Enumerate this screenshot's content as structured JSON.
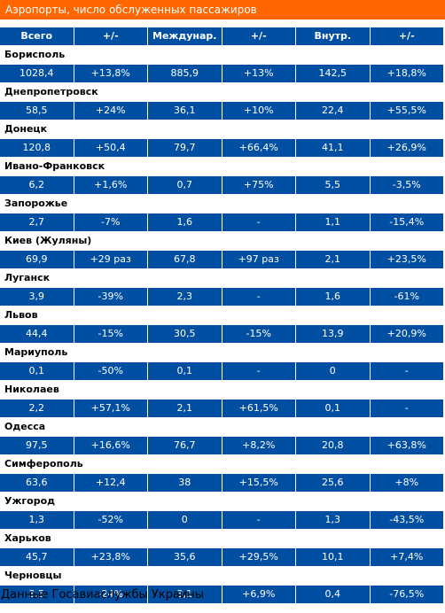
{
  "title": "Аэропорты, число обслуженных пассажиров",
  "headers": [
    "Всего",
    "+/-",
    "Междунар.",
    "+/-",
    "Внутр.",
    "+/-"
  ],
  "rows": [
    {
      "city": "Борисполь",
      "values": [
        "1028,4",
        "+13,8%",
        "885,9",
        "+13%",
        "142,5",
        "+18,8%"
      ]
    },
    {
      "city": "Днепропетровск",
      "values": [
        "58,5",
        "+24%",
        "36,1",
        "+10%",
        "22,4",
        "+55,5%"
      ]
    },
    {
      "city": "Донецк",
      "values": [
        "120,8",
        "+50,4",
        "79,7",
        "+66,4%",
        "41,1",
        "+26,9%"
      ]
    },
    {
      "city": "Ивано-Франковск",
      "values": [
        "6,2",
        "+1,6%",
        "0,7",
        "+75%",
        "5,5",
        "-3,5%"
      ]
    },
    {
      "city": "Запорожье",
      "values": [
        "2,7",
        "-7%",
        "1,6",
        "-",
        "1,1",
        "-15,4%"
      ]
    },
    {
      "city": "Киев (Жуляны)",
      "values": [
        "69,9",
        "+29 раз",
        "67,8",
        "+97 раз",
        "2,1",
        "+23,5%"
      ]
    },
    {
      "city": "Луганск",
      "values": [
        "3,9",
        "-39%",
        "2,3",
        "-",
        "1,6",
        "-61%"
      ]
    },
    {
      "city": "Львов",
      "values": [
        "44,4",
        "-15%",
        "30,5",
        "-15%",
        "13,9",
        "+20,9%"
      ]
    },
    {
      "city": "Мариуполь",
      "values": [
        "0,1",
        "-50%",
        "0,1",
        "-",
        "0",
        "-"
      ]
    },
    {
      "city": "Николаев",
      "values": [
        "2,2",
        "+57,1%",
        "2,1",
        "+61,5%",
        "0,1",
        "-"
      ]
    },
    {
      "city": "Одесса",
      "values": [
        "97,5",
        "+16,6%",
        "76,7",
        "+8,2%",
        "20,8",
        "+63,8%"
      ]
    },
    {
      "city": "Симферополь",
      "values": [
        "63,6",
        "+12,4",
        "38",
        "+15,5%",
        "25,6",
        "+8%"
      ]
    },
    {
      "city": "Ужгород",
      "values": [
        "1,3",
        "-52%",
        "0",
        "-",
        "1,3",
        "-43,5%"
      ]
    },
    {
      "city": "Харьков",
      "values": [
        "45,7",
        "+23,8%",
        "35,6",
        "+29,5%",
        "10,1",
        "+7,4%"
      ]
    },
    {
      "city": "Черновцы",
      "values": [
        "3,5",
        "-24%",
        "3,1",
        "+6,9%",
        "0,4",
        "-76,5%"
      ]
    }
  ],
  "footer": "Данные Госавиаслужбы Украины"
}
